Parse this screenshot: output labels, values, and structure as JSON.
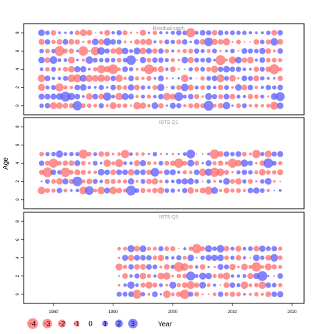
{
  "chart_data": [
    {
      "type": "bubble",
      "title": "Residual catch",
      "years": [
        1978,
        2018
      ],
      "ages": [
        0,
        1,
        2,
        3,
        4,
        5,
        6,
        7,
        8
      ],
      "ylim": [
        -1,
        9
      ],
      "yticks": [
        0,
        2,
        4,
        6,
        8
      ],
      "grid": false,
      "colors": {
        "negative": "#ff6b6b",
        "positive": "#5a5aff"
      }
    },
    {
      "type": "bubble",
      "title": "IBTS-Q1",
      "years": [
        1978,
        2018
      ],
      "ages": [
        1,
        2,
        3,
        4,
        5
      ],
      "ylim": [
        -1,
        9
      ],
      "yticks": [
        0,
        2,
        4,
        6,
        8
      ],
      "grid": false,
      "colors": {
        "negative": "#ff6b6b",
        "positive": "#5a5aff"
      }
    },
    {
      "type": "bubble",
      "title": "IBTS-Q3",
      "years": [
        1991,
        2018
      ],
      "ages": [
        0,
        1,
        2,
        3,
        4,
        5
      ],
      "ylim": [
        -1,
        9
      ],
      "yticks": [
        0,
        2,
        4,
        6,
        8
      ],
      "grid": false,
      "colors": {
        "negative": "#ff6b6b",
        "positive": "#5a5aff"
      }
    }
  ],
  "axes": {
    "xlabel": "Year",
    "ylabel": "Age",
    "xticks": [
      1980,
      1990,
      2000,
      2010,
      2020
    ],
    "xlim": [
      1975,
      2022
    ]
  },
  "legend": {
    "labels": [
      "-4",
      "-3",
      "-2",
      "-1",
      "0",
      "1",
      "2",
      "3"
    ],
    "values": [
      -4,
      -3,
      -2,
      -1,
      0,
      1,
      2,
      3
    ]
  }
}
